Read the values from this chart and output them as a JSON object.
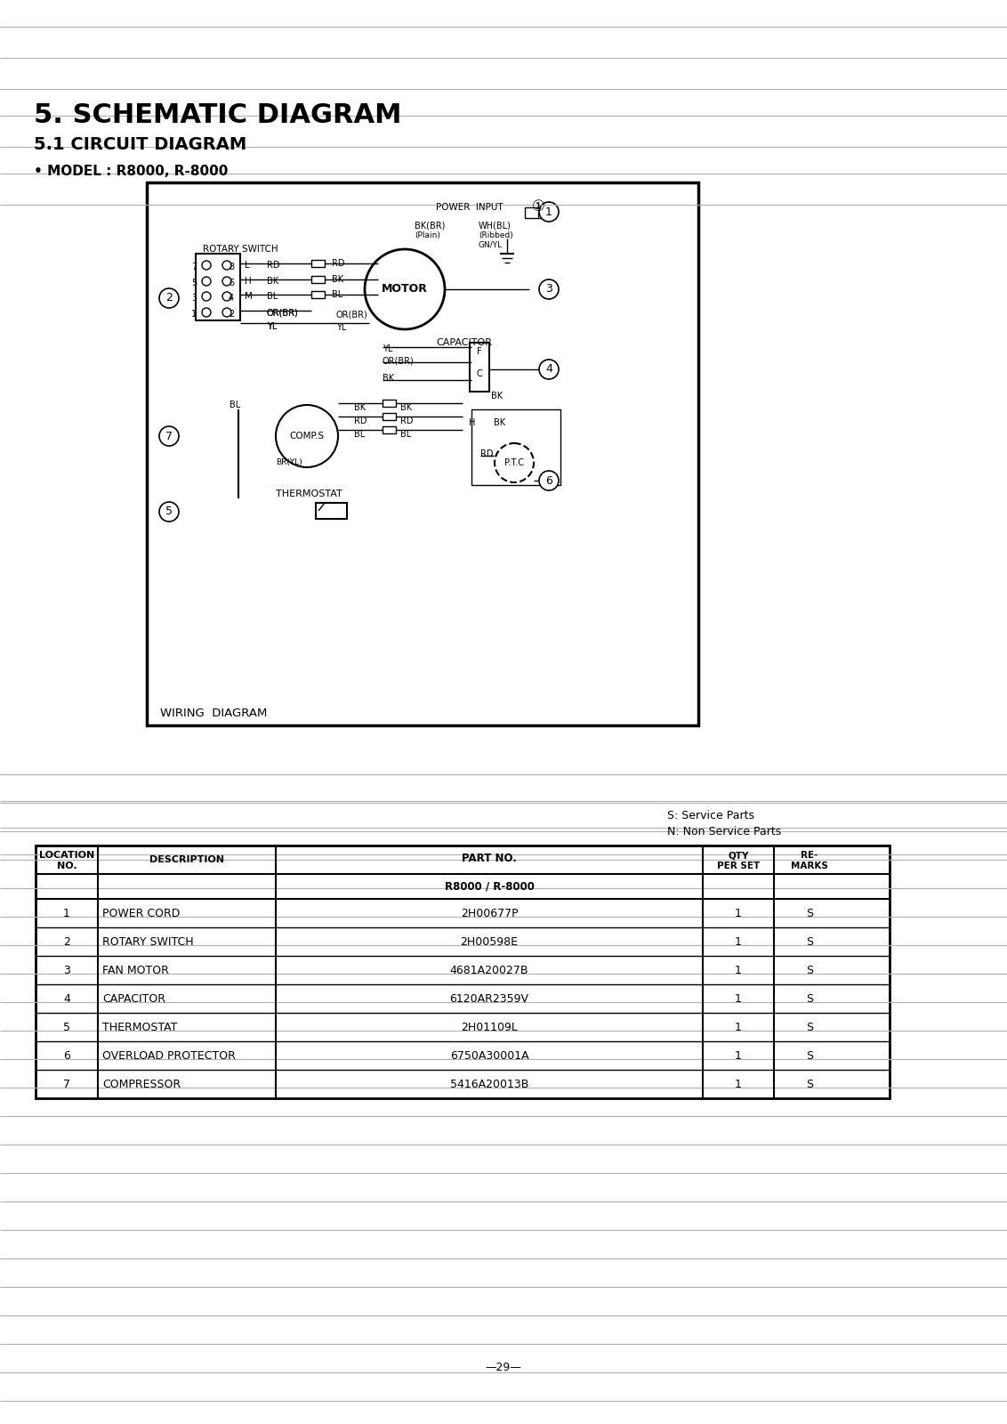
{
  "title1": "5. SCHEMATIC DIAGRAM",
  "title2": "5.1 CIRCUIT DIAGRAM",
  "model_line": "• MODEL : R8000, R-8000",
  "page_number": "—29—",
  "service_note1": "S: Service Parts",
  "service_note2": "N: Non Service Parts",
  "table_headers": [
    "LOCATION\nNO.",
    "DESCRIPTION",
    "PART NO.",
    "QTY\nPER SET",
    "RE-\nMARKS"
  ],
  "part_no_subheader": "R8000 / R-8000",
  "rows": [
    {
      "loc": "1",
      "desc": "POWER CORD",
      "part": "2H00677P",
      "qty": "1",
      "rem": "S"
    },
    {
      "loc": "2",
      "desc": "ROTARY SWITCH",
      "part": "2H00598E",
      "qty": "1",
      "rem": "S"
    },
    {
      "loc": "3",
      "desc": "FAN MOTOR",
      "part": "4681A20027B",
      "qty": "1",
      "rem": "S"
    },
    {
      "loc": "4",
      "desc": "CAPACITOR",
      "part": "6120AR2359V",
      "qty": "1",
      "rem": "S"
    },
    {
      "loc": "5",
      "desc": "THERMOSTAT",
      "part": "2H01109L",
      "qty": "1",
      "rem": "S"
    },
    {
      "loc": "6",
      "desc": "OVERLOAD PROTECTOR",
      "part": "6750A30001A",
      "qty": "1",
      "rem": "S"
    },
    {
      "loc": "7",
      "desc": "COMPRESSOR",
      "part": "5416A20013B",
      "qty": "1",
      "rem": "S"
    }
  ],
  "bg_color": "#ffffff",
  "line_color": "#000000",
  "text_color": "#000000",
  "grid_line_color": "#b0b0b0"
}
